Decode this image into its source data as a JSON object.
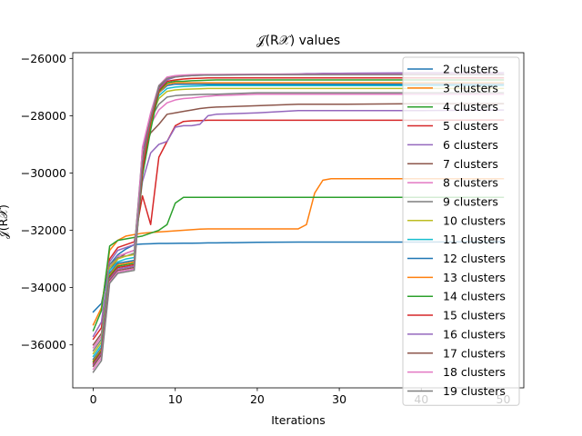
{
  "chart_data": {
    "type": "line",
    "title": "𝒥(R𝒳) values",
    "xlabel": "Iterations",
    "ylabel": "𝒥(R𝒳)",
    "xlim": [
      -2.5,
      52.5
    ],
    "ylim": [
      -37500,
      -25800
    ],
    "xticks": [
      0,
      10,
      20,
      30,
      40,
      50
    ],
    "xtick_labels": [
      "0",
      "10",
      "20",
      "30",
      "40",
      "50"
    ],
    "yticks": [
      -36000,
      -34000,
      -32000,
      -30000,
      -28000,
      -26000
    ],
    "ytick_labels": [
      "−36000",
      "−34000",
      "−32000",
      "−30000",
      "−28000",
      "−26000"
    ],
    "grid": false,
    "legend_position": "right",
    "x": [
      0,
      1,
      2,
      3,
      4,
      5,
      6,
      7,
      8,
      9,
      10,
      11,
      12,
      13,
      14,
      15,
      20,
      25,
      26,
      27,
      28,
      29,
      30,
      40,
      50
    ],
    "series": [
      {
        "name": "2 clusters",
        "color": "#1f77b4",
        "values": [
          -34850,
          -34550,
          -33200,
          -32850,
          -32650,
          -32500,
          -32480,
          -32470,
          -32460,
          -32460,
          -32455,
          -32450,
          -32450,
          -32445,
          -32440,
          -32440,
          -32420,
          -32410,
          -32410,
          -32410,
          -32410,
          -32410,
          -32410,
          -32410,
          -32400
        ]
      },
      {
        "name": "3 clusters",
        "color": "#ff7f0e",
        "values": [
          -35300,
          -34700,
          -32700,
          -32350,
          -32200,
          -32150,
          -32100,
          -32080,
          -32060,
          -32040,
          -32020,
          -32000,
          -31980,
          -31960,
          -31950,
          -31950,
          -31950,
          -31950,
          -31800,
          -30700,
          -30250,
          -30200,
          -30200,
          -30200,
          -30200
        ]
      },
      {
        "name": "4 clusters",
        "color": "#2ca02c",
        "values": [
          -35500,
          -34800,
          -32550,
          -32350,
          -32300,
          -32250,
          -32200,
          -32100,
          -32000,
          -31800,
          -31050,
          -30850,
          -30850,
          -30850,
          -30850,
          -30850,
          -30850,
          -30850,
          -30850,
          -30850,
          -30850,
          -30850,
          -30850,
          -30850,
          -30850
        ]
      },
      {
        "name": "5 clusters",
        "color": "#d62728",
        "values": [
          -35800,
          -35400,
          -33000,
          -32600,
          -32500,
          -32400,
          -30800,
          -31800,
          -29450,
          -28900,
          -28350,
          -28200,
          -28180,
          -28170,
          -28160,
          -28160,
          -28160,
          -28160,
          -28160,
          -28160,
          -28160,
          -28160,
          -28160,
          -28160,
          -28150
        ]
      },
      {
        "name": "6 clusters",
        "color": "#9467bd",
        "values": [
          -35700,
          -35200,
          -33100,
          -32700,
          -32600,
          -32500,
          -30300,
          -29300,
          -29000,
          -28900,
          -28400,
          -28350,
          -28350,
          -28300,
          -28000,
          -27950,
          -27900,
          -27820,
          -27820,
          -27820,
          -27820,
          -27820,
          -27820,
          -27820,
          -27800
        ]
      },
      {
        "name": "7 clusters",
        "color": "#8c564b",
        "values": [
          -36000,
          -35600,
          -33400,
          -33000,
          -32800,
          -32700,
          -29400,
          -28600,
          -28300,
          -27950,
          -27900,
          -27850,
          -27800,
          -27750,
          -27720,
          -27700,
          -27650,
          -27600,
          -27600,
          -27600,
          -27600,
          -27600,
          -27600,
          -27580,
          -27580
        ]
      },
      {
        "name": "8 clusters",
        "color": "#e377c2",
        "values": [
          -36100,
          -35700,
          -33300,
          -32900,
          -32800,
          -32700,
          -29700,
          -28300,
          -27800,
          -27550,
          -27450,
          -27400,
          -27380,
          -27350,
          -27320,
          -27300,
          -27250,
          -27250,
          -27250,
          -27250,
          -27250,
          -27250,
          -27250,
          -27250,
          -27250
        ]
      },
      {
        "name": "9 clusters",
        "color": "#7f7f7f",
        "values": [
          -36200,
          -35800,
          -33200,
          -32950,
          -32900,
          -32800,
          -29200,
          -28100,
          -27600,
          -27350,
          -27300,
          -27280,
          -27270,
          -27260,
          -27250,
          -27250,
          -27200,
          -27200,
          -27200,
          -27200,
          -27200,
          -27200,
          -27200,
          -27200,
          -27200
        ]
      },
      {
        "name": "10 clusters",
        "color": "#bcbd22",
        "values": [
          -36300,
          -35900,
          -33300,
          -33000,
          -32900,
          -32850,
          -29900,
          -28100,
          -27400,
          -27150,
          -27100,
          -27080,
          -27070,
          -27060,
          -27050,
          -27050,
          -27050,
          -27050,
          -27050,
          -27050,
          -27050,
          -27050,
          -27050,
          -27050,
          -27050
        ]
      },
      {
        "name": "11 clusters",
        "color": "#17becf",
        "values": [
          -36400,
          -36000,
          -33400,
          -33100,
          -33000,
          -32950,
          -29800,
          -28200,
          -27300,
          -27050,
          -27000,
          -26980,
          -26970,
          -26960,
          -26950,
          -26950,
          -26950,
          -26950,
          -26950,
          -26950,
          -26950,
          -26950,
          -26950,
          -26950,
          -26950
        ]
      },
      {
        "name": "12 clusters",
        "color": "#1f77b4",
        "values": [
          -36500,
          -36100,
          -33500,
          -33150,
          -33100,
          -33050,
          -29900,
          -28300,
          -27200,
          -26950,
          -26900,
          -26900,
          -26900,
          -26900,
          -26900,
          -26900,
          -26900,
          -26900,
          -26900,
          -26900,
          -26900,
          -26900,
          -26900,
          -26900,
          -26900
        ]
      },
      {
        "name": "13 clusters",
        "color": "#ff7f0e",
        "values": [
          -36550,
          -36150,
          -33550,
          -33200,
          -33150,
          -33100,
          -30000,
          -28400,
          -27200,
          -26900,
          -26850,
          -26850,
          -26850,
          -26850,
          -26850,
          -26850,
          -26850,
          -26850,
          -26850,
          -26850,
          -26850,
          -26850,
          -26850,
          -26850,
          -26850
        ]
      },
      {
        "name": "14 clusters",
        "color": "#2ca02c",
        "values": [
          -36600,
          -36200,
          -33600,
          -33250,
          -33200,
          -33150,
          -30100,
          -28500,
          -27150,
          -26850,
          -26800,
          -26800,
          -26780,
          -26770,
          -26760,
          -26750,
          -26750,
          -26750,
          -26750,
          -26750,
          -26750,
          -26750,
          -26750,
          -26750,
          -26750
        ]
      },
      {
        "name": "15 clusters",
        "color": "#d62728",
        "values": [
          -36650,
          -36250,
          -33650,
          -33300,
          -33250,
          -33200,
          -29900,
          -28200,
          -27100,
          -26800,
          -26750,
          -26720,
          -26700,
          -26690,
          -26680,
          -26680,
          -26680,
          -26680,
          -26680,
          -26680,
          -26680,
          -26680,
          -26680,
          -26680,
          -26680
        ]
      },
      {
        "name": "16 clusters",
        "color": "#9467bd",
        "values": [
          -36700,
          -36300,
          -33700,
          -33350,
          -33300,
          -33250,
          -29200,
          -28000,
          -27050,
          -26750,
          -26650,
          -26620,
          -26600,
          -26590,
          -26580,
          -26580,
          -26560,
          -26540,
          -26530,
          -26530,
          -26520,
          -26520,
          -26520,
          -26500,
          -26500
        ]
      },
      {
        "name": "17 clusters",
        "color": "#8c564b",
        "values": [
          -36750,
          -36350,
          -33750,
          -33400,
          -33350,
          -33300,
          -29500,
          -28000,
          -27000,
          -26700,
          -26620,
          -26600,
          -26590,
          -26580,
          -26570,
          -26570,
          -26560,
          -26560,
          -26560,
          -26560,
          -26560,
          -26560,
          -26560,
          -26560,
          -26560
        ]
      },
      {
        "name": "18 clusters",
        "color": "#e377c2",
        "values": [
          -36850,
          -36450,
          -33800,
          -33450,
          -33400,
          -33350,
          -29100,
          -27900,
          -26950,
          -26650,
          -26600,
          -26580,
          -26570,
          -26560,
          -26560,
          -26560,
          -26550,
          -26550,
          -26550,
          -26550,
          -26550,
          -26550,
          -26550,
          -26550,
          -26550
        ]
      },
      {
        "name": "19 clusters",
        "color": "#7f7f7f",
        "values": [
          -36950,
          -36550,
          -33850,
          -33500,
          -33450,
          -33400,
          -29600,
          -28100,
          -26950,
          -26700,
          -26650,
          -26620,
          -26600,
          -26590,
          -26580,
          -26580,
          -26570,
          -26570,
          -26570,
          -26570,
          -26570,
          -26570,
          -26570,
          -26570,
          -26570
        ]
      }
    ]
  }
}
